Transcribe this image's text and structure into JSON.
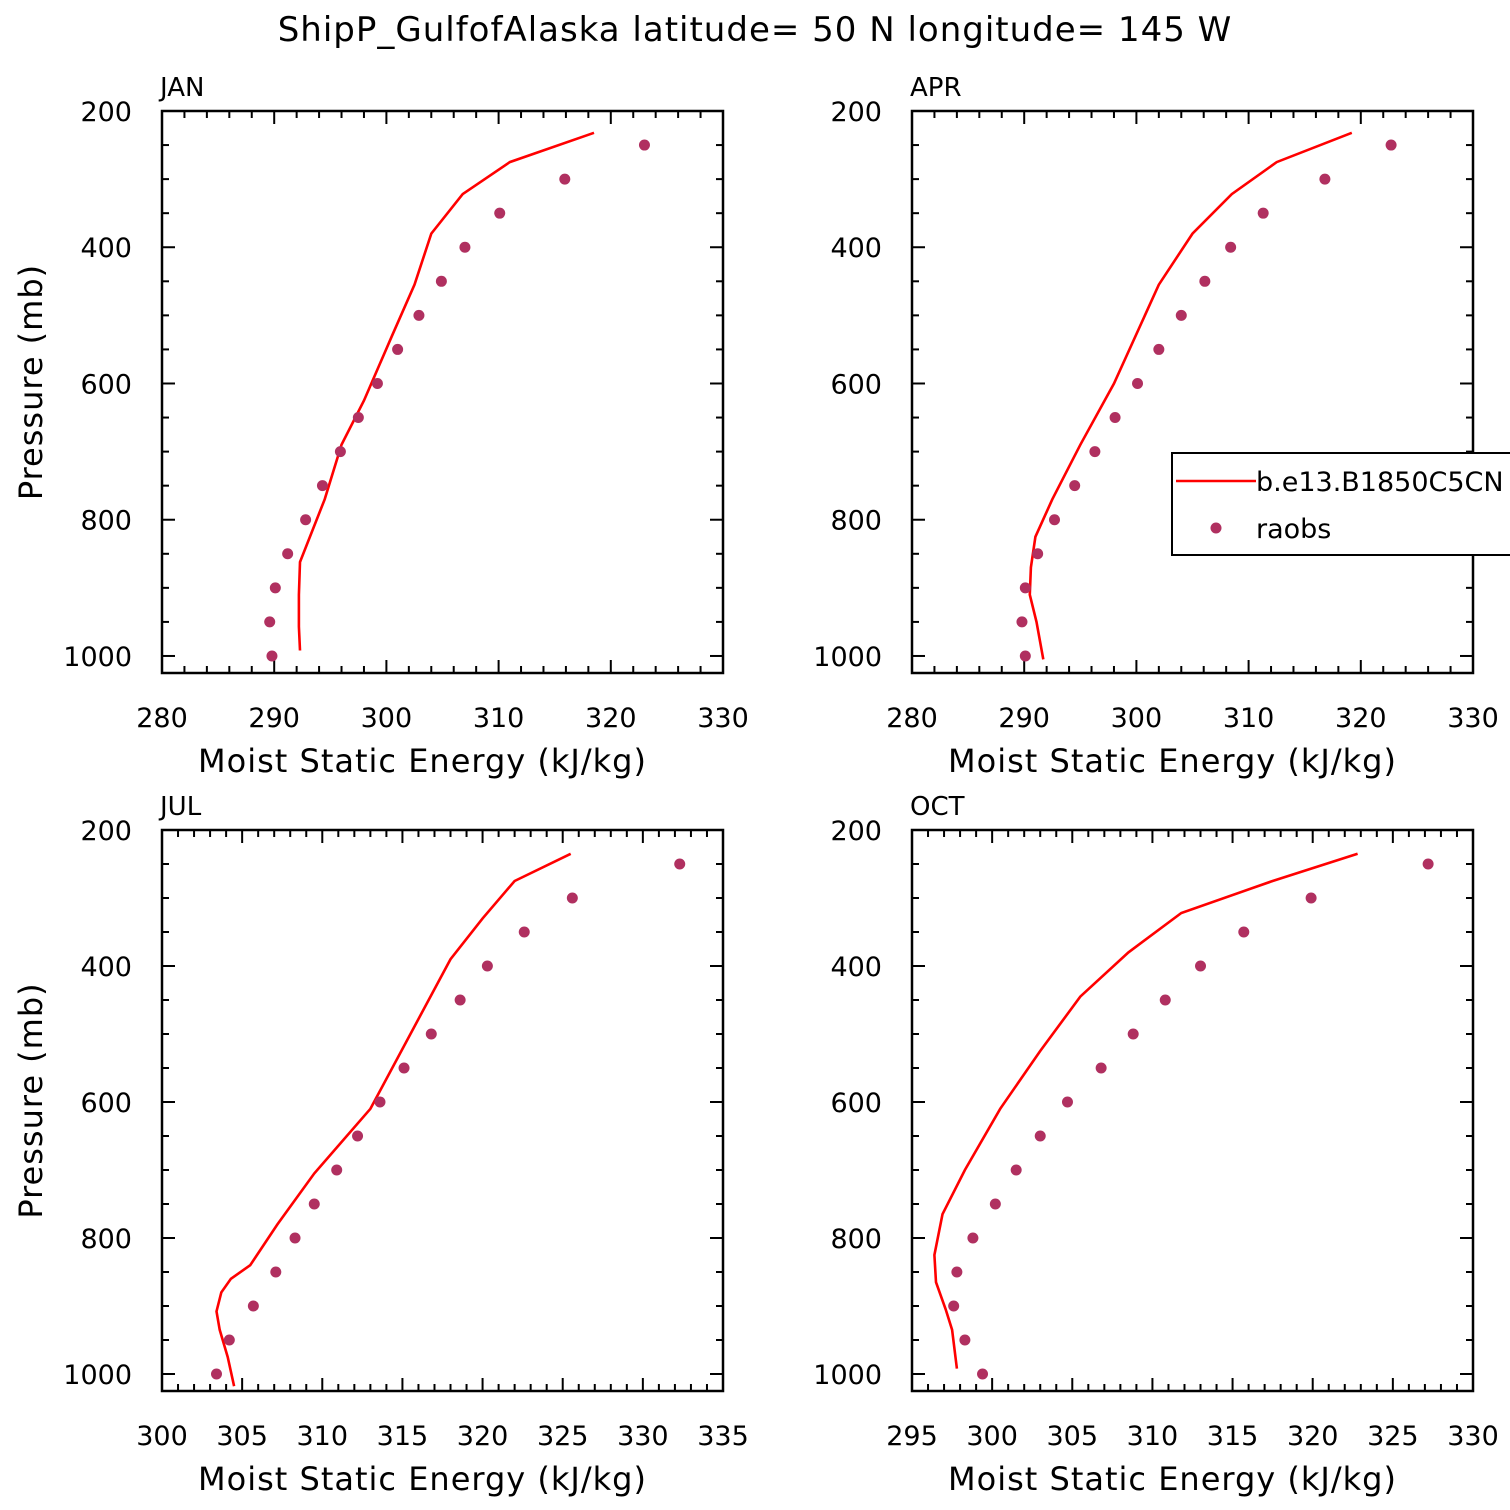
{
  "title": "ShipP_GulfofAlaska  latitude= 50 N longitude= 145 W",
  "colors": {
    "model": "#ff0000",
    "obs": "#b03060"
  },
  "legend": {
    "placement": "panel-2-right",
    "labels": [
      "b.e13.B1850C5CN",
      "raobs"
    ]
  },
  "chart_data": [
    {
      "type": "line",
      "month": "JAN",
      "xlabel": "Moist Static Energy (kJ/kg)",
      "ylabel": "Pressure (mb)",
      "xlim": [
        280,
        330
      ],
      "xticks": [
        "280",
        "290",
        "300",
        "310",
        "320",
        "330"
      ],
      "ylim": [
        1025,
        200
      ],
      "yticks": [
        "200",
        "400",
        "600",
        "800",
        "1000"
      ],
      "grid": false,
      "series": [
        {
          "name": "b.e13.B1850C5CN",
          "style": "line",
          "x": [
            292.3,
            292.2,
            292.2,
            292.3,
            294.5,
            296.0,
            298.0,
            300.5,
            302.5,
            304.0,
            306.8,
            311.0,
            318.5
          ],
          "y": [
            992,
            957,
            910,
            862,
            770,
            690,
            625,
            530,
            455,
            380,
            322,
            275,
            232
          ]
        },
        {
          "name": "raobs",
          "style": "markers",
          "x": [
            289.8,
            289.6,
            290.1,
            291.2,
            292.8,
            294.3,
            295.9,
            297.5,
            299.2,
            301.0,
            302.9,
            304.9,
            307.0,
            310.1,
            315.9,
            323.0
          ],
          "y": [
            1000,
            950,
            900,
            850,
            800,
            750,
            700,
            650,
            600,
            550,
            500,
            450,
            400,
            350,
            300,
            250
          ]
        }
      ]
    },
    {
      "type": "line",
      "month": "APR",
      "xlabel": "Moist Static Energy (kJ/kg)",
      "ylabel": "",
      "xlim": [
        280,
        330
      ],
      "xticks": [
        "280",
        "290",
        "300",
        "310",
        "320",
        "330"
      ],
      "ylim": [
        1025,
        200
      ],
      "yticks": [
        "200",
        "400",
        "600",
        "800",
        "1000"
      ],
      "grid": false,
      "series": [
        {
          "name": "b.e13.B1850C5CN",
          "style": "line",
          "x": [
            291.7,
            291.1,
            290.5,
            290.6,
            291.0,
            292.5,
            295.0,
            298.0,
            302.0,
            305.0,
            308.5,
            312.5,
            319.2
          ],
          "y": [
            1005,
            950,
            910,
            870,
            825,
            770,
            690,
            600,
            455,
            380,
            322,
            275,
            232
          ]
        },
        {
          "name": "raobs",
          "style": "markers",
          "x": [
            290.1,
            289.8,
            290.1,
            291.2,
            292.7,
            294.5,
            296.3,
            298.1,
            300.1,
            302.0,
            304.0,
            306.1,
            308.4,
            311.3,
            316.8,
            322.7
          ],
          "y": [
            1000,
            950,
            900,
            850,
            800,
            750,
            700,
            650,
            600,
            550,
            500,
            450,
            400,
            350,
            300,
            250
          ]
        }
      ]
    },
    {
      "type": "line",
      "month": "JUL",
      "xlabel": "Moist Static Energy (kJ/kg)",
      "ylabel": "Pressure (mb)",
      "xlim": [
        300,
        335
      ],
      "xticks": [
        "300",
        "305",
        "310",
        "315",
        "320",
        "325",
        "330",
        "335"
      ],
      "ylim": [
        1025,
        200
      ],
      "yticks": [
        "200",
        "400",
        "600",
        "800",
        "1000"
      ],
      "grid": false,
      "series": [
        {
          "name": "b.e13.B1850C5CN",
          "style": "line",
          "x": [
            304.5,
            304.1,
            303.6,
            303.4,
            303.7,
            304.3,
            305.5,
            307.2,
            309.5,
            313.0,
            318.0,
            320.0,
            322.0,
            325.5
          ],
          "y": [
            1018,
            975,
            935,
            908,
            880,
            860,
            840,
            780,
            705,
            610,
            390,
            330,
            275,
            235
          ]
        },
        {
          "name": "raobs",
          "style": "markers",
          "x": [
            303.4,
            304.2,
            305.7,
            307.1,
            308.3,
            309.5,
            310.9,
            312.2,
            313.6,
            315.1,
            316.8,
            318.6,
            320.3,
            322.6,
            325.6,
            332.3
          ],
          "y": [
            1000,
            950,
            900,
            850,
            800,
            750,
            700,
            650,
            600,
            550,
            500,
            450,
            400,
            350,
            300,
            250
          ]
        }
      ]
    },
    {
      "type": "line",
      "month": "OCT",
      "xlabel": "Moist Static Energy (kJ/kg)",
      "ylabel": "",
      "xlim": [
        295,
        330
      ],
      "xticks": [
        "295",
        "300",
        "305",
        "310",
        "315",
        "320",
        "325",
        "330"
      ],
      "ylim": [
        1025,
        200
      ],
      "yticks": [
        "200",
        "400",
        "600",
        "800",
        "1000"
      ],
      "grid": false,
      "series": [
        {
          "name": "b.e13.B1850C5CN",
          "style": "line",
          "x": [
            297.8,
            297.5,
            297.1,
            296.5,
            296.4,
            296.9,
            298.3,
            300.5,
            303.0,
            305.5,
            308.5,
            311.8,
            317.5,
            322.8
          ],
          "y": [
            992,
            935,
            905,
            865,
            825,
            765,
            700,
            610,
            525,
            445,
            380,
            322,
            275,
            235
          ]
        },
        {
          "name": "raobs",
          "style": "markers",
          "x": [
            299.4,
            298.3,
            297.6,
            297.8,
            298.8,
            300.2,
            301.5,
            303.0,
            304.7,
            306.8,
            308.8,
            310.8,
            313.0,
            315.7,
            319.9,
            327.2
          ],
          "y": [
            1000,
            950,
            900,
            850,
            800,
            750,
            700,
            650,
            600,
            550,
            500,
            450,
            400,
            350,
            300,
            250
          ]
        }
      ]
    }
  ]
}
